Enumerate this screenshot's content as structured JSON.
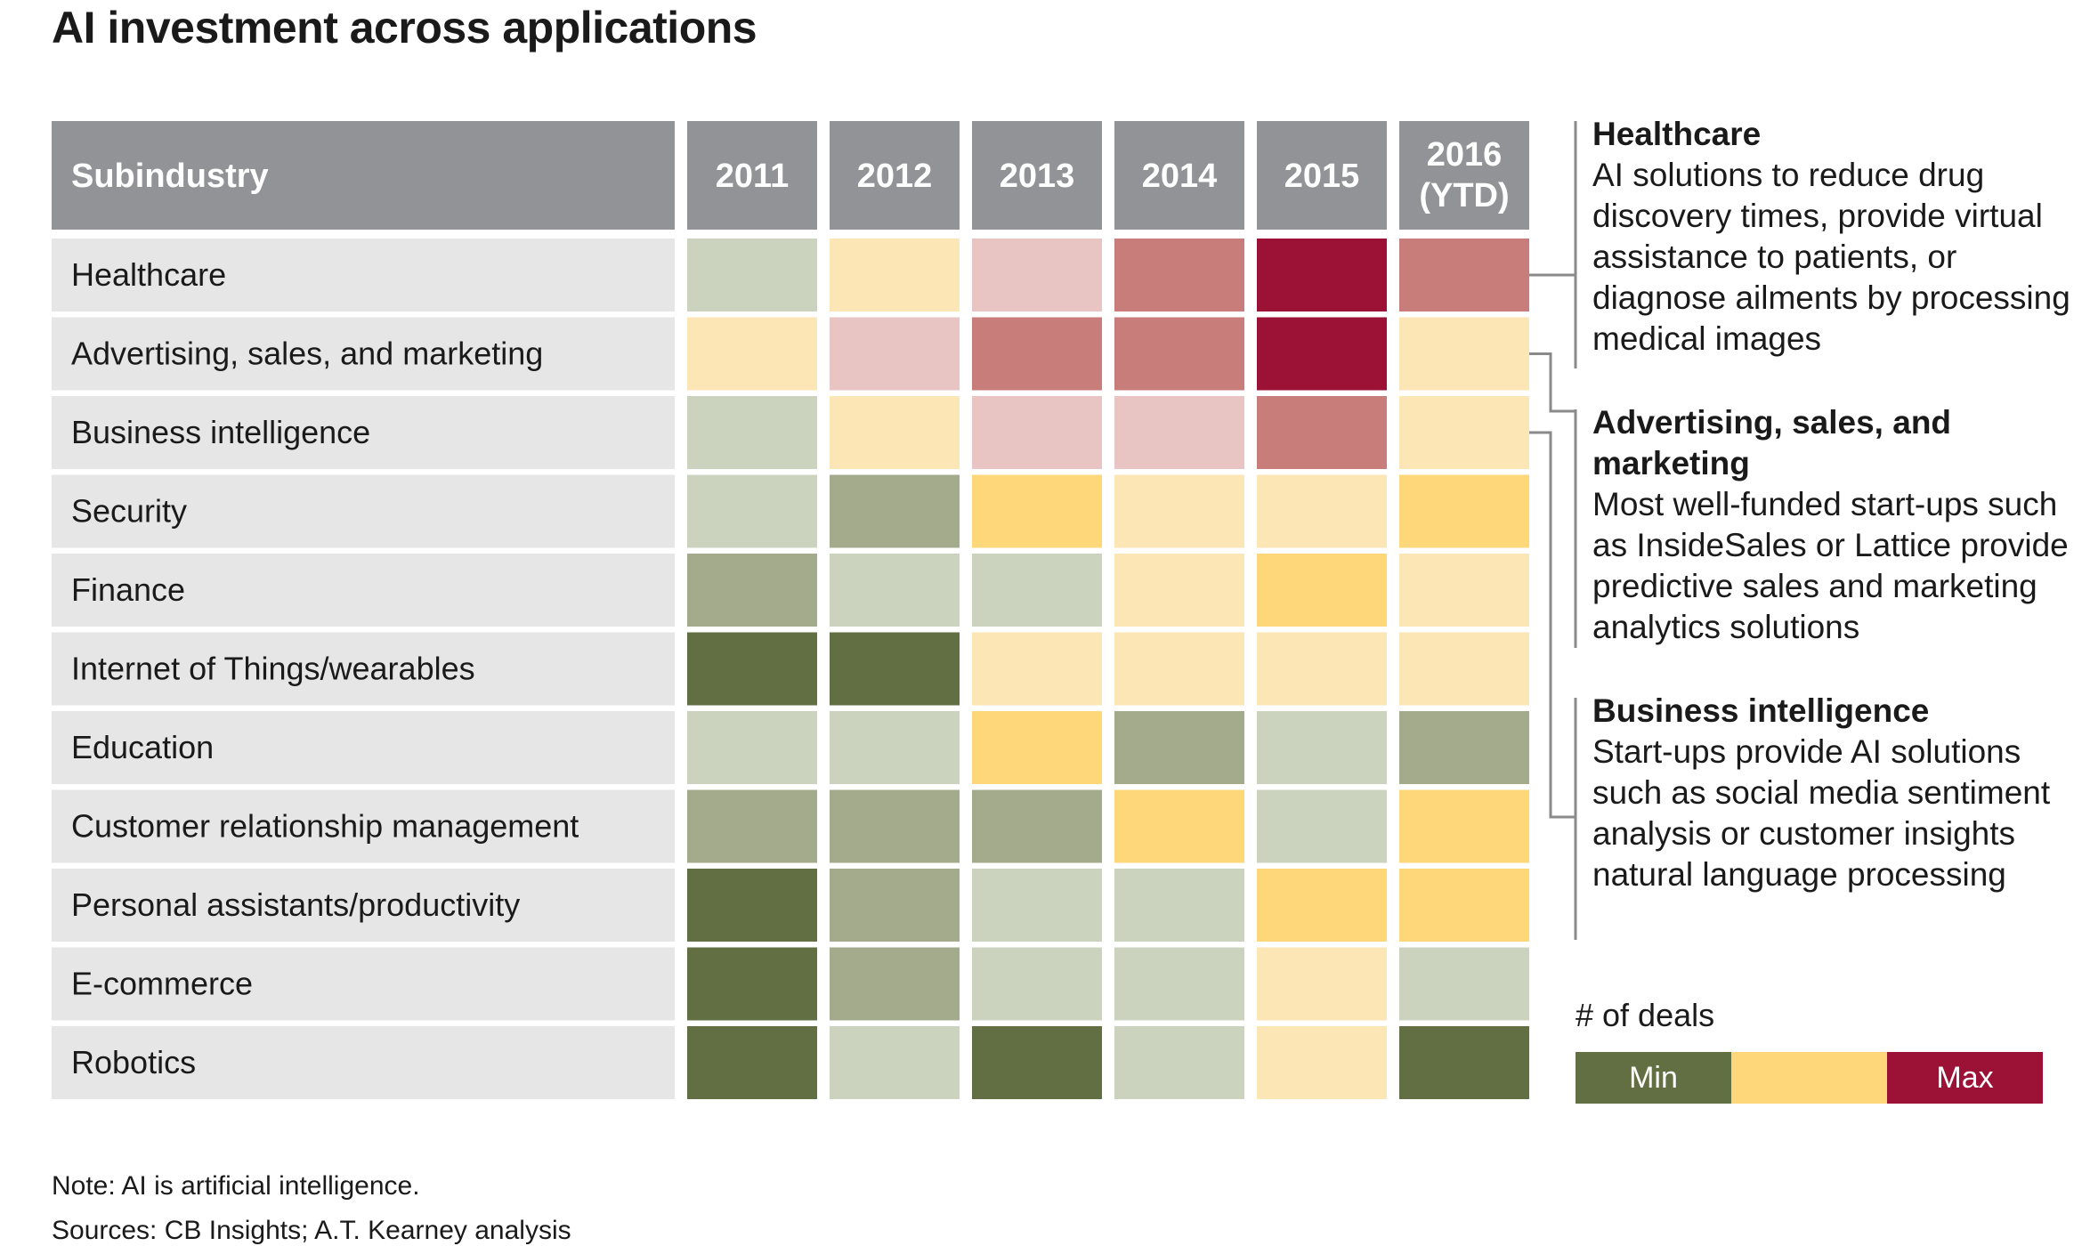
{
  "title": "AI investment across applications",
  "chart_data": {
    "type": "heatmap",
    "row_header": "Subindustry",
    "columns": [
      "2011",
      "2012",
      "2013",
      "2014",
      "2015",
      "2016 (YTD)"
    ],
    "rows": [
      {
        "label": "Healthcare",
        "values": [
          2,
          4,
          5,
          6,
          7,
          6
        ]
      },
      {
        "label": "Advertising, sales, and marketing",
        "values": [
          4,
          5,
          6,
          6,
          7,
          4
        ]
      },
      {
        "label": "Business intelligence",
        "values": [
          2,
          4,
          5,
          5,
          6,
          4
        ]
      },
      {
        "label": "Security",
        "values": [
          2,
          1,
          3,
          4,
          4,
          3
        ]
      },
      {
        "label": "Finance",
        "values": [
          1,
          2,
          2,
          4,
          3,
          4
        ]
      },
      {
        "label": "Internet of Things/wearables",
        "values": [
          0,
          0,
          4,
          4,
          4,
          4
        ]
      },
      {
        "label": "Education",
        "values": [
          2,
          2,
          3,
          1,
          2,
          1
        ]
      },
      {
        "label": "Customer relationship management",
        "values": [
          1,
          1,
          1,
          3,
          2,
          3
        ]
      },
      {
        "label": "Personal assistants/productivity",
        "values": [
          0,
          1,
          2,
          2,
          3,
          3
        ]
      },
      {
        "label": "E-commerce",
        "values": [
          0,
          1,
          2,
          2,
          4,
          2
        ]
      },
      {
        "label": "Robotics",
        "values": [
          0,
          2,
          0,
          2,
          4,
          0
        ]
      }
    ],
    "scale": {
      "min_level": 0,
      "max_level": 7,
      "colors": [
        "#626f42",
        "#a3ab8c",
        "#cbd3bf",
        "#fdd779",
        "#fde6b6",
        "#e8c5c3",
        "#c97d7b",
        "#9c1136"
      ]
    },
    "legend": {
      "title": "# of deals",
      "min_label": "Min",
      "max_label": "Max",
      "colors": [
        "#626f42",
        "#fdd779",
        "#9c1136"
      ]
    }
  },
  "annotations": [
    {
      "heading": "Healthcare",
      "text": "AI solutions to reduce drug discovery times, provide virtual assistance to patients, or diagnose ailments by processing medical images"
    },
    {
      "heading": "Advertising, sales, and marketing",
      "text": "Most well-funded start-ups such as InsideSales or Lattice provide predictive sales and marketing analytics solutions"
    },
    {
      "heading": "Business intelligence",
      "text": "Start-ups provide AI solutions such as social media sentiment analysis or customer insights natural language processing"
    }
  ],
  "notes": {
    "note": "Note: AI is artificial intelligence.",
    "sources": "Sources: CB Insights; A.T. Kearney analysis"
  },
  "colors": {
    "header_bg": "#929396",
    "row_label_bg": "#e6e6e7",
    "bracket": "#8a8a8a"
  }
}
